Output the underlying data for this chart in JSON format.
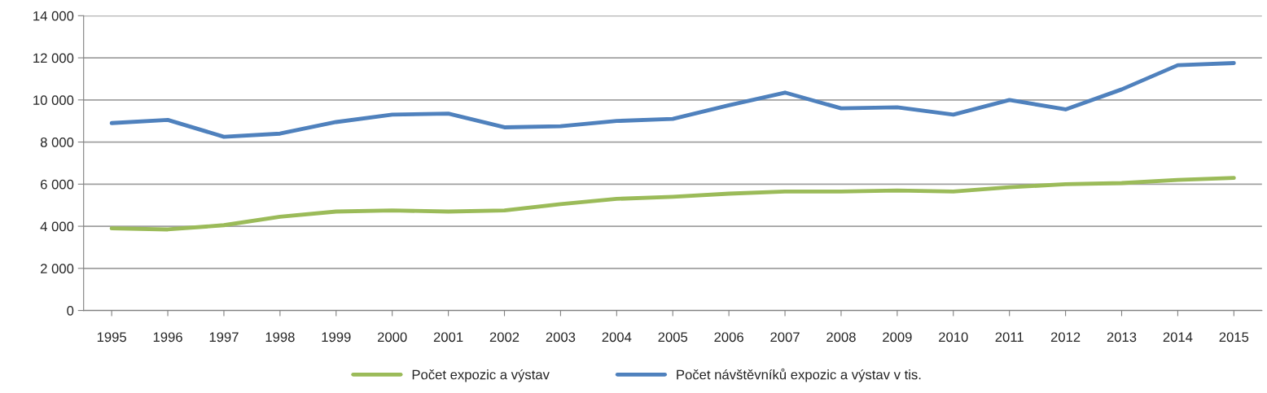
{
  "chart_data": {
    "type": "line",
    "categories": [
      "1995",
      "1996",
      "1997",
      "1998",
      "1999",
      "2000",
      "2001",
      "2002",
      "2003",
      "2004",
      "2005",
      "2006",
      "2007",
      "2008",
      "2009",
      "2010",
      "2011",
      "2012",
      "2013",
      "2014",
      "2015"
    ],
    "series": [
      {
        "name": "Počet expozic a výstav",
        "color": "#9bbb59",
        "values": [
          3900,
          3850,
          4050,
          4450,
          4700,
          4750,
          4700,
          4750,
          5050,
          5300,
          5400,
          5550,
          5650,
          5650,
          5700,
          5650,
          5850,
          6000,
          6050,
          6200,
          6300
        ]
      },
      {
        "name": "Počet návštěvníků expozic a výstav v tis.",
        "color": "#4f81bd",
        "values": [
          8900,
          9050,
          8250,
          8400,
          8950,
          9300,
          9350,
          8700,
          8750,
          9000,
          9100,
          9750,
          10350,
          9600,
          9650,
          9300,
          10000,
          9550,
          10500,
          11650,
          11750
        ]
      }
    ],
    "ylim": [
      0,
      14000
    ],
    "yticks": [
      {
        "value": 0,
        "label": "0"
      },
      {
        "value": 2000,
        "label": "2 000"
      },
      {
        "value": 4000,
        "label": "4 000"
      },
      {
        "value": 6000,
        "label": "6 000"
      },
      {
        "value": 8000,
        "label": "8 000"
      },
      {
        "value": 10000,
        "label": "10 000"
      },
      {
        "value": 12000,
        "label": "12 000"
      },
      {
        "value": 14000,
        "label": "14 000"
      }
    ],
    "grid": "y",
    "legend": "bottom",
    "marker": "none",
    "line_style": "solid"
  }
}
